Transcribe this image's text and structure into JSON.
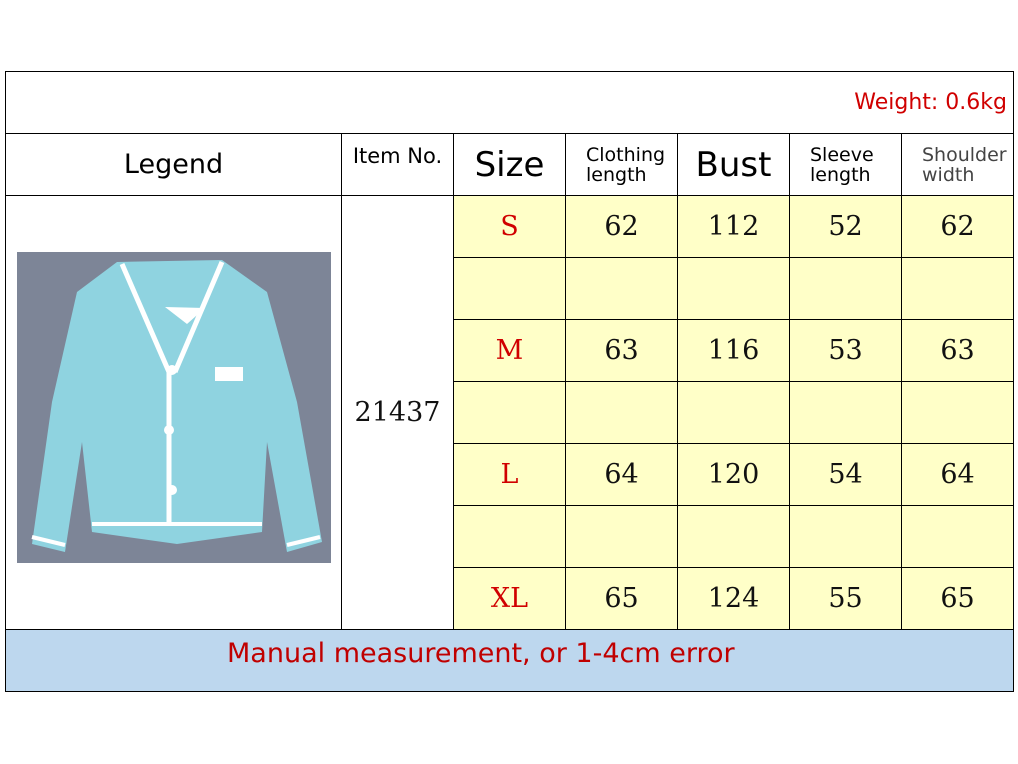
{
  "weight": "Weight: 0.6kg",
  "headers": {
    "legend": "Legend",
    "item_no": "Item No.",
    "size": "Size",
    "clothing_length": [
      "Clothing",
      "length"
    ],
    "bust": "Bust",
    "sleeve_length": [
      "Sleeve",
      "length"
    ],
    "shoulder_width": [
      "Shoulder",
      "width"
    ]
  },
  "item_no": "21437",
  "rows": [
    {
      "size": "S",
      "values": [
        "62",
        "112",
        "52",
        "62"
      ]
    },
    {
      "size": "",
      "values": [
        "",
        "",
        "",
        ""
      ]
    },
    {
      "size": "M",
      "values": [
        "63",
        "116",
        "53",
        "63"
      ]
    },
    {
      "size": "",
      "values": [
        "",
        "",
        "",
        ""
      ]
    },
    {
      "size": "L",
      "values": [
        "64",
        "120",
        "54",
        "64"
      ]
    },
    {
      "size": "",
      "values": [
        "",
        "",
        "",
        ""
      ]
    },
    {
      "size": "XL",
      "values": [
        "65",
        "124",
        "55",
        "65"
      ]
    }
  ],
  "footer": "Manual measurement, or 1-4cm error",
  "colors": {
    "accent_red": "#d00000",
    "data_bg": "#ffffc8",
    "footer_bg": "#bdd7ee",
    "photo_bg": "#7d8597",
    "cardigan": "#8fd3e0"
  }
}
